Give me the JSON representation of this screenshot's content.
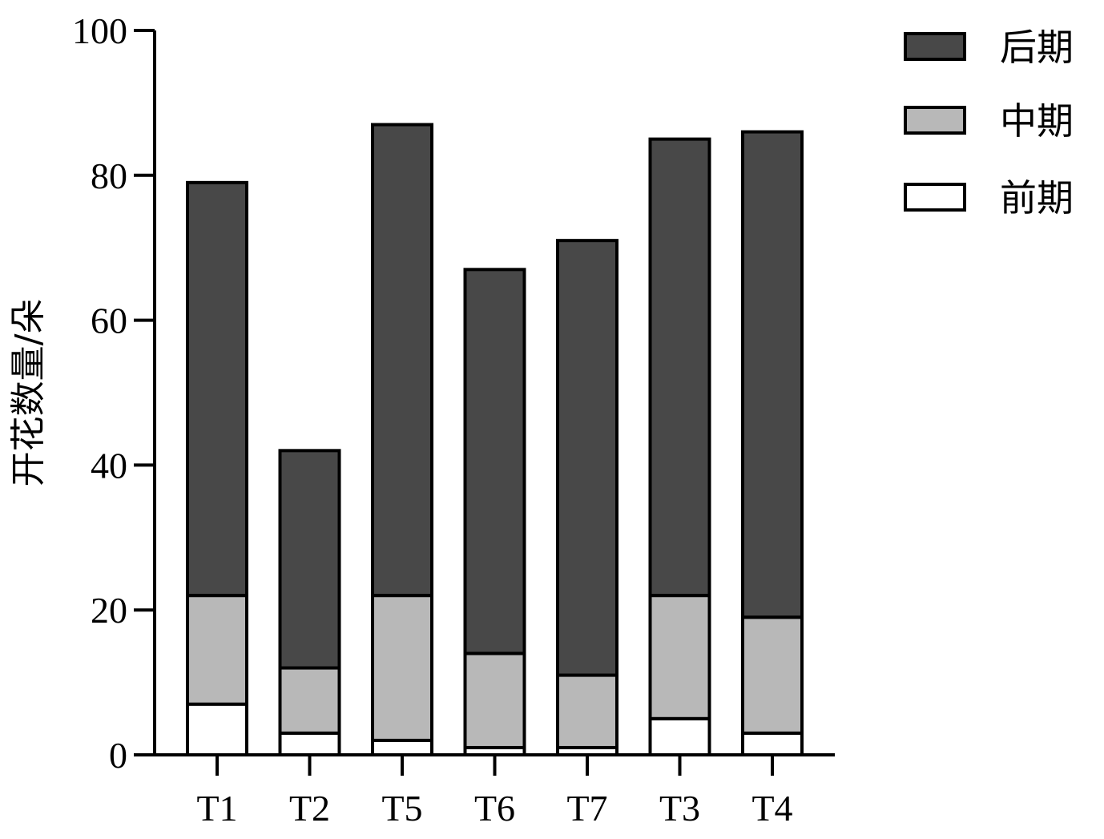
{
  "chart_data": {
    "type": "bar",
    "stacked": true,
    "categories": [
      "T1",
      "T2",
      "T5",
      "T6",
      "T7",
      "T3",
      "T4"
    ],
    "series": [
      {
        "name": "前期",
        "values": [
          7,
          3,
          2,
          1,
          1,
          5,
          3
        ],
        "color": "#ffffff"
      },
      {
        "name": "中期",
        "values": [
          15,
          9,
          20,
          13,
          10,
          17,
          16
        ],
        "color": "#b8b8b8"
      },
      {
        "name": "后期",
        "values": [
          57,
          30,
          65,
          53,
          60,
          63,
          67
        ],
        "color": "#484848"
      }
    ],
    "totals": [
      79,
      42,
      87,
      67,
      71,
      85,
      86
    ],
    "ylabel": "开花数量/朵",
    "xlabel": "",
    "ylim": [
      0,
      100
    ],
    "yticks": [
      0,
      20,
      40,
      60,
      80,
      100
    ],
    "grid": false,
    "legend": {
      "position": "top-right",
      "order": [
        "后期",
        "中期",
        "前期"
      ]
    }
  }
}
